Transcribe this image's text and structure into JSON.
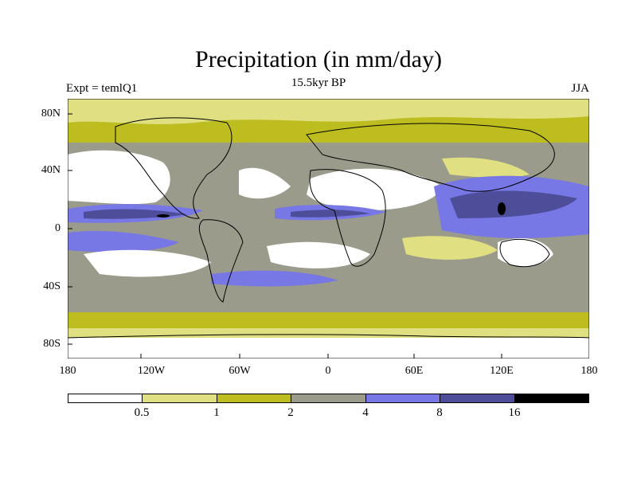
{
  "title": "Precipitation (in mm/day)",
  "subtitle": "15.5kyr BP",
  "left_label": "Expt = temlQ1",
  "right_label": "JJA",
  "lat_labels": [
    "80N",
    "40N",
    "0",
    "40S",
    "80S"
  ],
  "lon_labels": [
    "180",
    "120W",
    "60W",
    "0",
    "60E",
    "120E",
    "180"
  ],
  "colorbar": {
    "labels": [
      "0.5",
      "1",
      "2",
      "4",
      "8",
      "16"
    ],
    "colors": [
      "#ffffff",
      "#e0e083",
      "#bdbd1f",
      "#9b9b8c",
      "#7777e6",
      "#4d4d99",
      "#000000"
    ]
  }
}
